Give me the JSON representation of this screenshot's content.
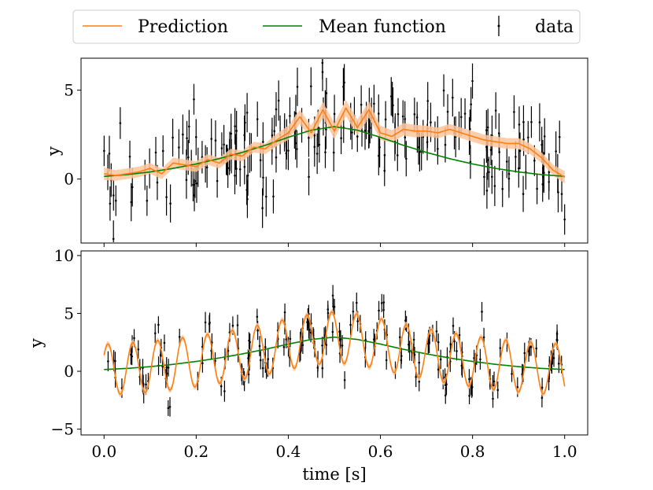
{
  "colors": {
    "prediction": "#ff7f0e",
    "prediction_band": "#ffc49a",
    "mean_function": "#008000",
    "data": "#000000"
  },
  "legend": {
    "entries": [
      {
        "label": "Prediction",
        "kind": "line",
        "color": "#ff7f0e"
      },
      {
        "label": "Mean function",
        "kind": "line",
        "color": "#008000"
      },
      {
        "label": "data",
        "kind": "errorbar",
        "color": "#000000"
      }
    ],
    "placement": "top-center"
  },
  "chart_data": [
    {
      "type": "line",
      "title": "",
      "xlabel": "",
      "ylabel": "y",
      "xlim": [
        -0.05,
        1.05
      ],
      "ylim": [
        -3.6,
        6.8
      ],
      "yticks": [
        0,
        5
      ],
      "ytick_labels": [
        "0",
        "5"
      ],
      "xticks": [
        0.0,
        0.2,
        0.4,
        0.6,
        0.8,
        1.0
      ],
      "xtick_labels_visible": false,
      "grid": false,
      "mean_function": {
        "x": [
          0.0,
          0.05,
          0.1,
          0.15,
          0.2,
          0.25,
          0.3,
          0.35,
          0.4,
          0.45,
          0.5,
          0.55,
          0.6,
          0.65,
          0.7,
          0.75,
          0.8,
          0.85,
          0.9,
          0.95,
          1.0
        ],
        "y": [
          0.15,
          0.25,
          0.4,
          0.6,
          0.85,
          1.15,
          1.5,
          1.9,
          2.35,
          2.75,
          2.95,
          2.75,
          2.35,
          1.9,
          1.5,
          1.15,
          0.85,
          0.6,
          0.4,
          0.25,
          0.15
        ]
      },
      "prediction": {
        "x": [
          0.0,
          0.025,
          0.05,
          0.075,
          0.1,
          0.125,
          0.15,
          0.175,
          0.2,
          0.225,
          0.25,
          0.275,
          0.3,
          0.325,
          0.35,
          0.375,
          0.4,
          0.425,
          0.45,
          0.475,
          0.5,
          0.525,
          0.55,
          0.575,
          0.6,
          0.625,
          0.65,
          0.675,
          0.7,
          0.725,
          0.75,
          0.775,
          0.8,
          0.825,
          0.85,
          0.875,
          0.9,
          0.925,
          0.95,
          0.975,
          1.0
        ],
        "y": [
          0.3,
          0.2,
          0.3,
          0.4,
          0.6,
          0.3,
          0.9,
          0.8,
          0.7,
          1.1,
          0.9,
          1.4,
          1.3,
          1.8,
          1.7,
          2.2,
          2.6,
          3.5,
          2.6,
          3.9,
          2.7,
          4.0,
          2.9,
          3.9,
          2.6,
          2.4,
          2.8,
          2.7,
          2.7,
          2.6,
          2.8,
          2.6,
          2.4,
          2.2,
          2.1,
          2.0,
          2.0,
          1.7,
          1.2,
          0.5,
          0.1
        ],
        "band_halfwidth": [
          0.35,
          0.3,
          0.3,
          0.3,
          0.3,
          0.3,
          0.3,
          0.3,
          0.3,
          0.3,
          0.3,
          0.3,
          0.3,
          0.3,
          0.3,
          0.35,
          0.4,
          0.4,
          0.4,
          0.45,
          0.45,
          0.45,
          0.45,
          0.45,
          0.4,
          0.35,
          0.35,
          0.35,
          0.3,
          0.3,
          0.3,
          0.3,
          0.3,
          0.3,
          0.3,
          0.3,
          0.3,
          0.3,
          0.3,
          0.3,
          0.35
        ]
      },
      "data": {
        "n_points": 220,
        "x_range": [
          0.0,
          1.0
        ],
        "trend": "mean_function plus smooth wiggles and noise",
        "noise_sd": 1.3,
        "errorbar_halfwidth": 1.0
      }
    },
    {
      "type": "line",
      "title": "",
      "xlabel": "time [s]",
      "ylabel": "y",
      "xlim": [
        -0.05,
        1.05
      ],
      "ylim": [
        -5.5,
        10.4
      ],
      "yticks": [
        -5,
        0,
        5,
        10
      ],
      "ytick_labels": [
        "−5",
        "0",
        "5",
        "10"
      ],
      "xticks": [
        0.0,
        0.2,
        0.4,
        0.6,
        0.8,
        1.0
      ],
      "xtick_labels": [
        "0.0",
        "0.2",
        "0.4",
        "0.6",
        "0.8",
        "1.0"
      ],
      "grid": false,
      "mean_function": {
        "x": [
          0.0,
          0.05,
          0.1,
          0.15,
          0.2,
          0.25,
          0.3,
          0.35,
          0.4,
          0.45,
          0.5,
          0.55,
          0.6,
          0.65,
          0.7,
          0.75,
          0.8,
          0.85,
          0.9,
          0.95,
          1.0
        ],
        "y": [
          0.15,
          0.25,
          0.4,
          0.6,
          0.85,
          1.15,
          1.5,
          1.9,
          2.35,
          2.75,
          2.95,
          2.75,
          2.35,
          1.9,
          1.5,
          1.15,
          0.85,
          0.6,
          0.4,
          0.25,
          0.15
        ]
      },
      "prediction": {
        "form": "mean_function + oscillation",
        "oscillation_amplitude": 2.2,
        "oscillation_period": 0.054,
        "x_range": [
          0.0,
          1.0
        ],
        "band_halfwidth": 0.25
      },
      "data": {
        "n_points": 220,
        "x_range": [
          0.0,
          1.0
        ],
        "trend": "prediction plus noise",
        "noise_sd": 1.0,
        "errorbar_halfwidth": 0.8
      }
    }
  ]
}
